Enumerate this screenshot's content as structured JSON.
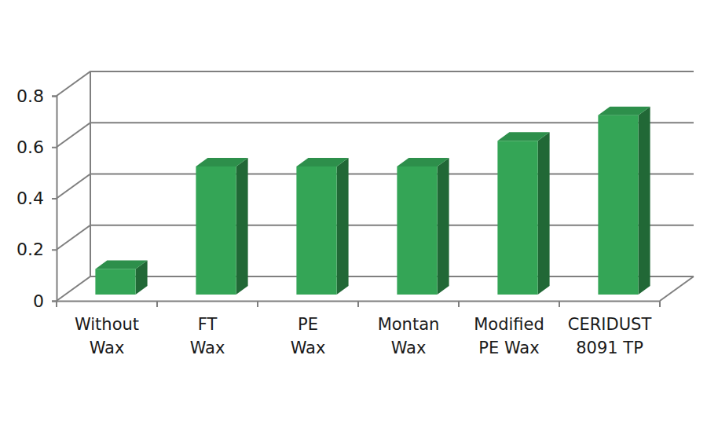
{
  "chart_data": {
    "type": "bar",
    "categories": [
      "Without\nWax",
      "FT\nWax",
      "PE\nWax",
      "Montan\nWax",
      "Modified\nPE Wax",
      "CERIDUST\n8091 TP"
    ],
    "values": [
      0.1,
      0.5,
      0.5,
      0.5,
      0.6,
      0.7
    ],
    "color": "#34a556",
    "ylim": [
      0,
      0.8
    ],
    "yticks": [
      0,
      0.2,
      0.4,
      0.6,
      0.8
    ],
    "grid": true
  }
}
